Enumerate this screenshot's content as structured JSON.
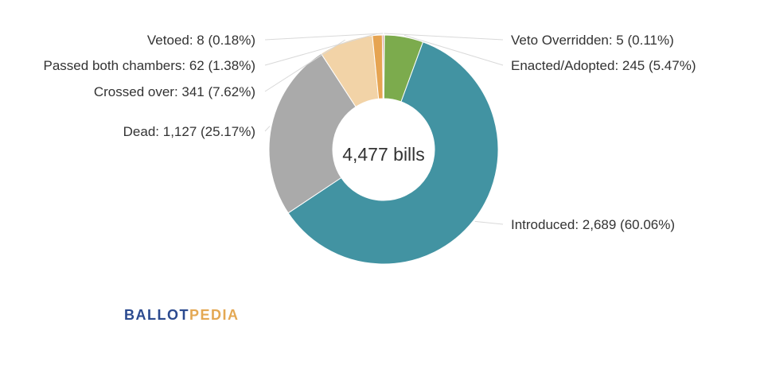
{
  "chart_data": {
    "type": "pie",
    "donut": true,
    "center_label": "4,477 bills",
    "total": 4477,
    "slices": [
      {
        "name": "Veto Overridden",
        "value": 5,
        "percent": 0.11,
        "color": "#2f4050",
        "label": "Veto Overridden: 5 (0.11%)"
      },
      {
        "name": "Enacted/Adopted",
        "value": 245,
        "percent": 5.47,
        "color": "#7cab4d",
        "label": "Enacted/Adopted: 245 (5.47%)"
      },
      {
        "name": "Introduced",
        "value": 2689,
        "percent": 60.06,
        "color": "#4293a2",
        "label": "Introduced: 2,689 (60.06%)"
      },
      {
        "name": "Dead",
        "value": 1127,
        "percent": 25.17,
        "color": "#aaaaaa",
        "label": "Dead: 1,127 (25.17%)"
      },
      {
        "name": "Crossed over",
        "value": 341,
        "percent": 7.62,
        "color": "#f2d3a7",
        "label": "Crossed over: 341 (7.62%)"
      },
      {
        "name": "Passed both chambers",
        "value": 62,
        "percent": 1.38,
        "color": "#e6a452",
        "label": "Passed both chambers: 62 (1.38%)"
      },
      {
        "name": "Vetoed",
        "value": 8,
        "percent": 0.18,
        "color": "#b23a2e",
        "label": "Vetoed: 8 (0.18%)"
      }
    ]
  },
  "logo": {
    "part1": "BALLOT",
    "part2": "PEDIA",
    "color1": "#2b4a8f",
    "color2": "#e4a853"
  }
}
